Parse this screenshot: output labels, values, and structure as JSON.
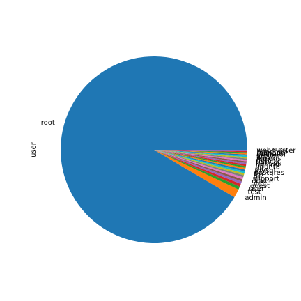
{
  "chart_data": {
    "type": "pie",
    "ylabel": "user",
    "start_angle_deg": 0,
    "direction": "counterclockwise",
    "slices": [
      {
        "label": "root",
        "value": 92.8,
        "color": "#1f77b4"
      },
      {
        "label": "admin",
        "value": 1.5,
        "color": "#ff7f0e"
      },
      {
        "label": "test",
        "value": 0.55,
        "color": "#2ca02c"
      },
      {
        "label": "user",
        "value": 0.5,
        "color": "#d62728"
      },
      {
        "label": "guest",
        "value": 0.45,
        "color": "#9467bd"
      },
      {
        "label": "ubnt",
        "value": 0.4,
        "color": "#8c564b"
      },
      {
        "label": "oracle",
        "value": 0.38,
        "color": "#e377c2"
      },
      {
        "label": "support",
        "value": 0.36,
        "color": "#7f7f7f"
      },
      {
        "label": "pi",
        "value": 0.34,
        "color": "#bcbd22"
      },
      {
        "label": "ftp",
        "value": 0.33,
        "color": "#17becf"
      },
      {
        "label": "postgres",
        "value": 0.32,
        "color": "#1f77b4"
      },
      {
        "label": "mysql",
        "value": 0.31,
        "color": "#ff7f0e"
      },
      {
        "label": "git",
        "value": 0.3,
        "color": "#2ca02c"
      },
      {
        "label": "ubuntu",
        "value": 0.29,
        "color": "#d62728"
      },
      {
        "label": "nagios",
        "value": 0.28,
        "color": "#9467bd"
      },
      {
        "label": "hadoop",
        "value": 0.27,
        "color": "#8c564b"
      },
      {
        "label": "tomcat",
        "value": 0.26,
        "color": "#e377c2"
      },
      {
        "label": "deploy",
        "value": 0.25,
        "color": "#7f7f7f"
      },
      {
        "label": "jenkins",
        "value": 0.24,
        "color": "#bcbd22"
      },
      {
        "label": "www",
        "value": 0.23,
        "color": "#17becf"
      },
      {
        "label": "server",
        "value": 0.22,
        "color": "#1f77b4"
      },
      {
        "label": "operator",
        "value": 0.21,
        "color": "#ff7f0e"
      },
      {
        "label": "manager",
        "value": 0.2,
        "color": "#2ca02c"
      },
      {
        "label": "pgadmin",
        "value": 0.2,
        "color": "#d62728"
      },
      {
        "label": "webmaster",
        "value": 0.2,
        "color": "#9467bd"
      }
    ]
  }
}
